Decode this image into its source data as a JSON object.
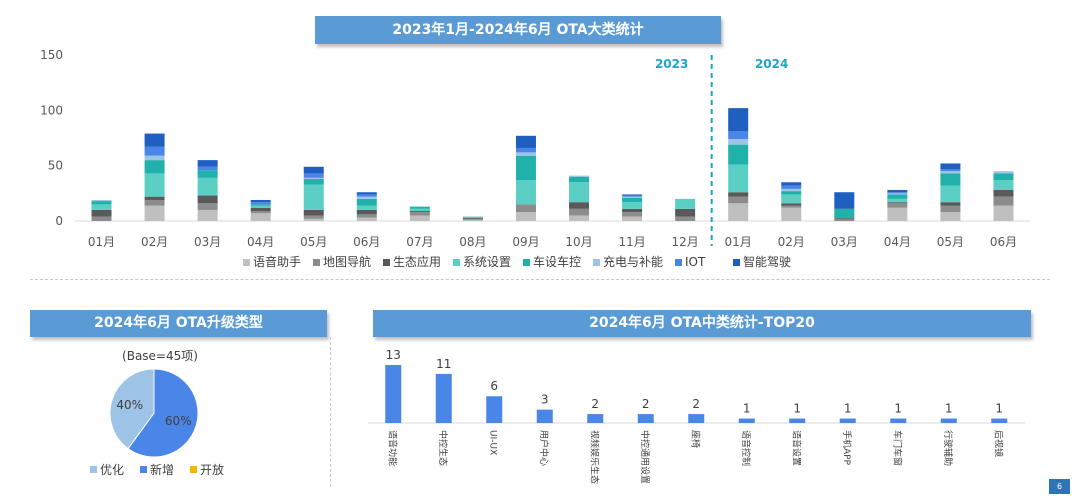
{
  "main_title": "2023年1月-2024年6月 OTA大类统计",
  "upgrade_title": "2024年6月 OTA升级类型",
  "top20_title": "2024年6月 OTA中类统计-TOP20",
  "base_label": "(Base=45项)",
  "page_number": "6",
  "colors": {
    "banner": "#5b9bd5",
    "year_marker": "#1fa3c8"
  },
  "chart_data": [
    {
      "type": "bar",
      "stacked": true,
      "title": "2023年1月-2024年6月 OTA大类统计",
      "categories": [
        "01月",
        "02月",
        "03月",
        "04月",
        "05月",
        "06月",
        "07月",
        "08月",
        "09月",
        "10月",
        "11月",
        "12月",
        "01月",
        "02月",
        "03月",
        "04月",
        "05月",
        "06月"
      ],
      "year_labels": [
        {
          "label": "2023",
          "after_index": 11
        },
        {
          "label": "2024",
          "after_index": 11
        }
      ],
      "ylim": [
        0,
        150
      ],
      "yticks": [
        "0",
        "50",
        "100",
        "150"
      ],
      "legend_position": "bottom",
      "series": [
        {
          "name": "语音助手",
          "color": "#bfbfbf",
          "values": [
            0,
            14,
            10,
            7,
            2,
            3,
            5,
            1,
            8,
            5,
            4,
            0,
            16,
            12,
            0,
            12,
            8,
            14
          ]
        },
        {
          "name": "地图导航",
          "color": "#8c8c8c",
          "values": [
            4,
            5,
            6,
            2,
            3,
            3,
            3,
            1,
            7,
            6,
            4,
            4,
            6,
            2,
            2,
            4,
            6,
            8
          ]
        },
        {
          "name": "生态应用",
          "color": "#595959",
          "values": [
            6,
            3,
            7,
            3,
            5,
            4,
            1,
            1,
            0,
            6,
            3,
            7,
            4,
            2,
            1,
            1,
            3,
            6
          ]
        },
        {
          "name": "系统设置",
          "color": "#5ccfc4",
          "values": [
            5,
            21,
            16,
            2,
            23,
            4,
            2,
            1,
            22,
            18,
            6,
            9,
            25,
            8,
            0,
            3,
            15,
            9
          ]
        },
        {
          "name": "车设车控",
          "color": "#20b2aa",
          "values": [
            3,
            12,
            7,
            1,
            5,
            6,
            2,
            0,
            22,
            5,
            4,
            0,
            18,
            3,
            8,
            4,
            11,
            6
          ]
        },
        {
          "name": "充电与补能",
          "color": "#9dc3e6",
          "values": [
            1,
            4,
            0,
            0,
            1,
            2,
            0,
            0,
            3,
            1,
            1,
            0,
            5,
            2,
            0,
            1,
            2,
            2
          ]
        },
        {
          "name": "IOT",
          "color": "#4a86e8",
          "values": [
            0,
            8,
            3,
            2,
            4,
            2,
            0,
            0,
            4,
            0,
            1,
            0,
            7,
            3,
            0,
            1,
            2,
            0
          ]
        },
        {
          "name": "智能驾驶",
          "color": "#1f5fbf",
          "values": [
            0,
            12,
            6,
            2,
            6,
            2,
            0,
            0,
            11,
            0,
            1,
            0,
            21,
            3,
            15,
            2,
            5,
            0
          ]
        }
      ]
    },
    {
      "type": "pie",
      "title": "2024年6月 OTA升级类型",
      "base": "(Base=45项)",
      "legend_position": "bottom",
      "slices": [
        {
          "name": "优化",
          "value": 40,
          "label": "40%",
          "color": "#9dc3e6"
        },
        {
          "name": "新增",
          "value": 60,
          "label": "60%",
          "color": "#4a86e8"
        },
        {
          "name": "开放",
          "value": 0,
          "label": "",
          "color": "#f2b705"
        }
      ]
    },
    {
      "type": "bar",
      "title": "2024年6月 OTA中类统计-TOP20",
      "categories": [
        "语音功能",
        "中控生态",
        "UI-UX",
        "用户中心",
        "视频娱乐生态",
        "中控通用设置",
        "座椅",
        "语音控制",
        "语音设置",
        "手机APP",
        "车门车窗",
        "行驶辅助",
        "后视镜"
      ],
      "values": [
        13,
        11,
        6,
        3,
        2,
        2,
        2,
        1,
        1,
        1,
        1,
        1,
        1
      ],
      "color": "#4a86e8"
    }
  ]
}
